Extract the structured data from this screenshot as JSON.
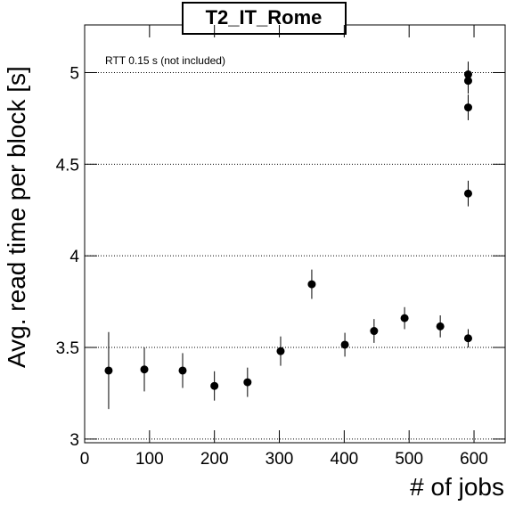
{
  "chart_data": {
    "type": "scatter",
    "title": "T2_IT_Rome",
    "x_label": "# of jobs",
    "y_label": "Avg. read time per block [s]",
    "annotation": "RTT 0.15 s (not included)",
    "series": [
      {
        "color": "#000000",
        "x": [
          37,
          92,
          151,
          200,
          251,
          302,
          350,
          401,
          446,
          493,
          548,
          591,
          591,
          591,
          591,
          591
        ],
        "values": [
          3.374,
          3.38,
          3.374,
          3.29,
          3.31,
          3.48,
          3.845,
          3.515,
          3.59,
          3.66,
          3.615,
          3.55,
          4.34,
          4.81,
          4.955,
          4.99
        ],
        "errors": [
          0.21,
          0.12,
          0.095,
          0.08,
          0.08,
          0.08,
          0.08,
          0.065,
          0.065,
          0.06,
          0.06,
          0.05,
          0.07,
          0.07,
          0.07,
          0.07
        ]
      }
    ],
    "xlim": [
      0,
      648
    ],
    "ylim": [
      2.98,
      5.26
    ],
    "xticks": [
      0,
      100,
      200,
      300,
      400,
      500,
      600
    ],
    "yticks": [
      3,
      3.5,
      4,
      4.5,
      5
    ],
    "grid": true
  }
}
